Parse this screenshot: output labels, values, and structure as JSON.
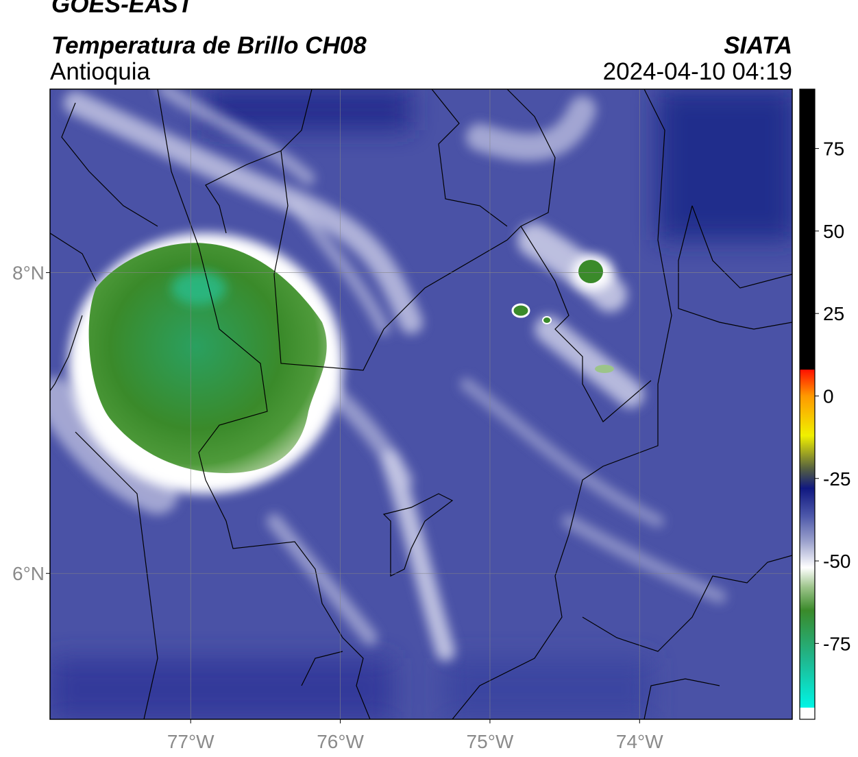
{
  "title": "GOES-EAST",
  "subtitle": "Temperatura de Brillo CH08",
  "region": "Antioquia",
  "source": "SIATA",
  "timestamp": "2024-04-10 04:19",
  "map": {
    "xlim": [
      -77.94,
      -72.98
    ],
    "ylim": [
      5.03,
      9.22
    ],
    "xticks": [
      {
        "value": -77,
        "label": "77°W"
      },
      {
        "value": -76,
        "label": "76°W"
      },
      {
        "value": -75,
        "label": "75°W"
      },
      {
        "value": -74,
        "label": "74°W"
      }
    ],
    "yticks": [
      {
        "value": 6,
        "label": "6°N"
      },
      {
        "value": 8,
        "label": "8°N"
      }
    ],
    "grid": true
  },
  "colorbar": {
    "lim": [
      -98,
      93
    ],
    "ticks": [
      -75,
      -50,
      -25,
      0,
      25,
      50,
      75
    ],
    "stops": [
      [
        -98,
        "#ffffff"
      ],
      [
        -94.5,
        "#ffffff"
      ],
      [
        -94.5,
        "#00f5e6"
      ],
      [
        -80,
        "#1fb890"
      ],
      [
        -65,
        "#3a8a2a"
      ],
      [
        -58,
        "#9cc48a"
      ],
      [
        -52,
        "#ffffff"
      ],
      [
        -44,
        "#9aa0cc"
      ],
      [
        -36,
        "#4a55a8"
      ],
      [
        -28,
        "#101880"
      ],
      [
        -22,
        "#556040"
      ],
      [
        -12,
        "#f0f000"
      ],
      [
        0,
        "#ff9900"
      ],
      [
        8,
        "#ff1000"
      ],
      [
        8,
        "#000000"
      ],
      [
        93,
        "#000000"
      ]
    ]
  }
}
